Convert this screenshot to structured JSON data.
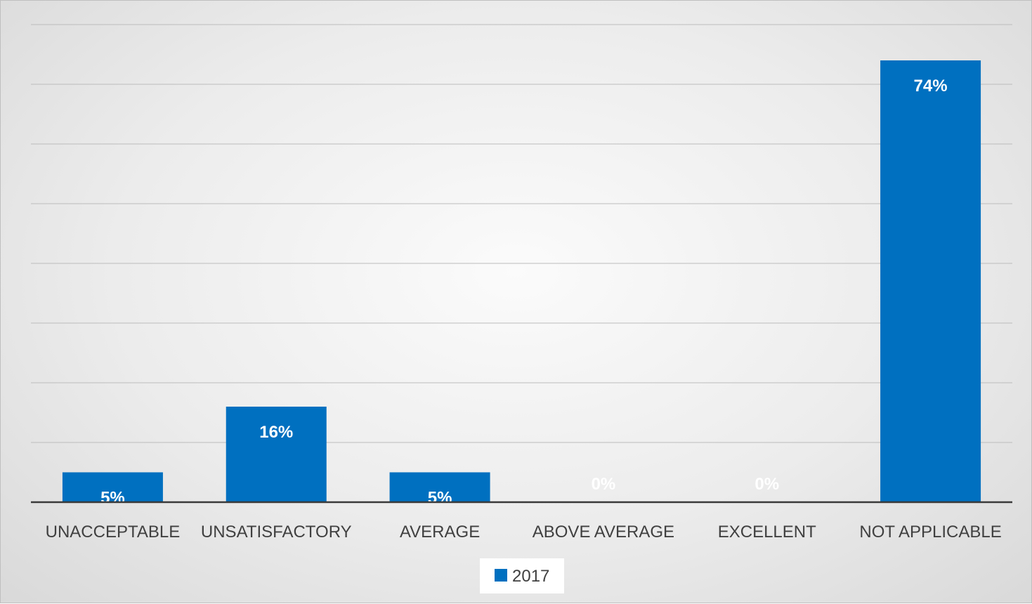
{
  "chart_data": {
    "type": "bar",
    "categories": [
      "UNACCEPTABLE",
      "UNSATISFACTORY",
      "AVERAGE",
      "ABOVE AVERAGE",
      "EXCELLENT",
      "NOT APPLICABLE"
    ],
    "series": [
      {
        "name": "2017",
        "values": [
          5,
          16,
          5,
          0,
          0,
          74
        ],
        "color": "#0070c0"
      }
    ],
    "data_labels": [
      "5%",
      "16%",
      "5%",
      "0%",
      "0%",
      "74%"
    ],
    "ylim": [
      0,
      80
    ],
    "grid": true,
    "legend": "bottom-center"
  }
}
